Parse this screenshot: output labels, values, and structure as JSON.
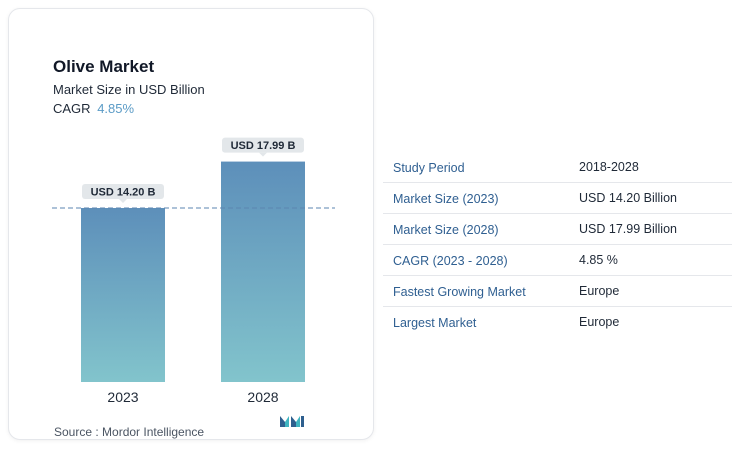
{
  "card": {
    "title": "Olive Market",
    "subtitle": "Market Size in USD Billion",
    "cagr_label": "CAGR",
    "cagr_value": "4.85%",
    "source": "Source : Mordor Intelligence"
  },
  "chart_data": {
    "type": "bar",
    "title": "Olive Market",
    "subtitle": "Market Size in USD Billion",
    "categories": [
      "2023",
      "2028"
    ],
    "values": [
      14.2,
      17.99
    ],
    "data_labels": [
      "USD 14.20 B",
      "USD 17.99 B"
    ],
    "reference_line": 14.2,
    "ylim": [
      0,
      18.2
    ],
    "colors": {
      "bar_top": "#5d8fba",
      "bar_bottom": "#82c4cc",
      "label_bg": "#e3e7ea",
      "ref_line": "#5b86b0"
    }
  },
  "table": {
    "rows": [
      {
        "label": "Study Period",
        "value": "2018-2028"
      },
      {
        "label": "Market Size (2023)",
        "value": "USD 14.20 Billion"
      },
      {
        "label": "Market Size (2028)",
        "value": "USD 17.99 Billion"
      },
      {
        "label": "CAGR (2023 - 2028)",
        "value": "4.85 %"
      },
      {
        "label": "Fastest Growing Market",
        "value": "Europe"
      },
      {
        "label": "Largest Market",
        "value": "Europe"
      }
    ]
  },
  "logo": {
    "icon": "mordor-intelligence-logo"
  }
}
